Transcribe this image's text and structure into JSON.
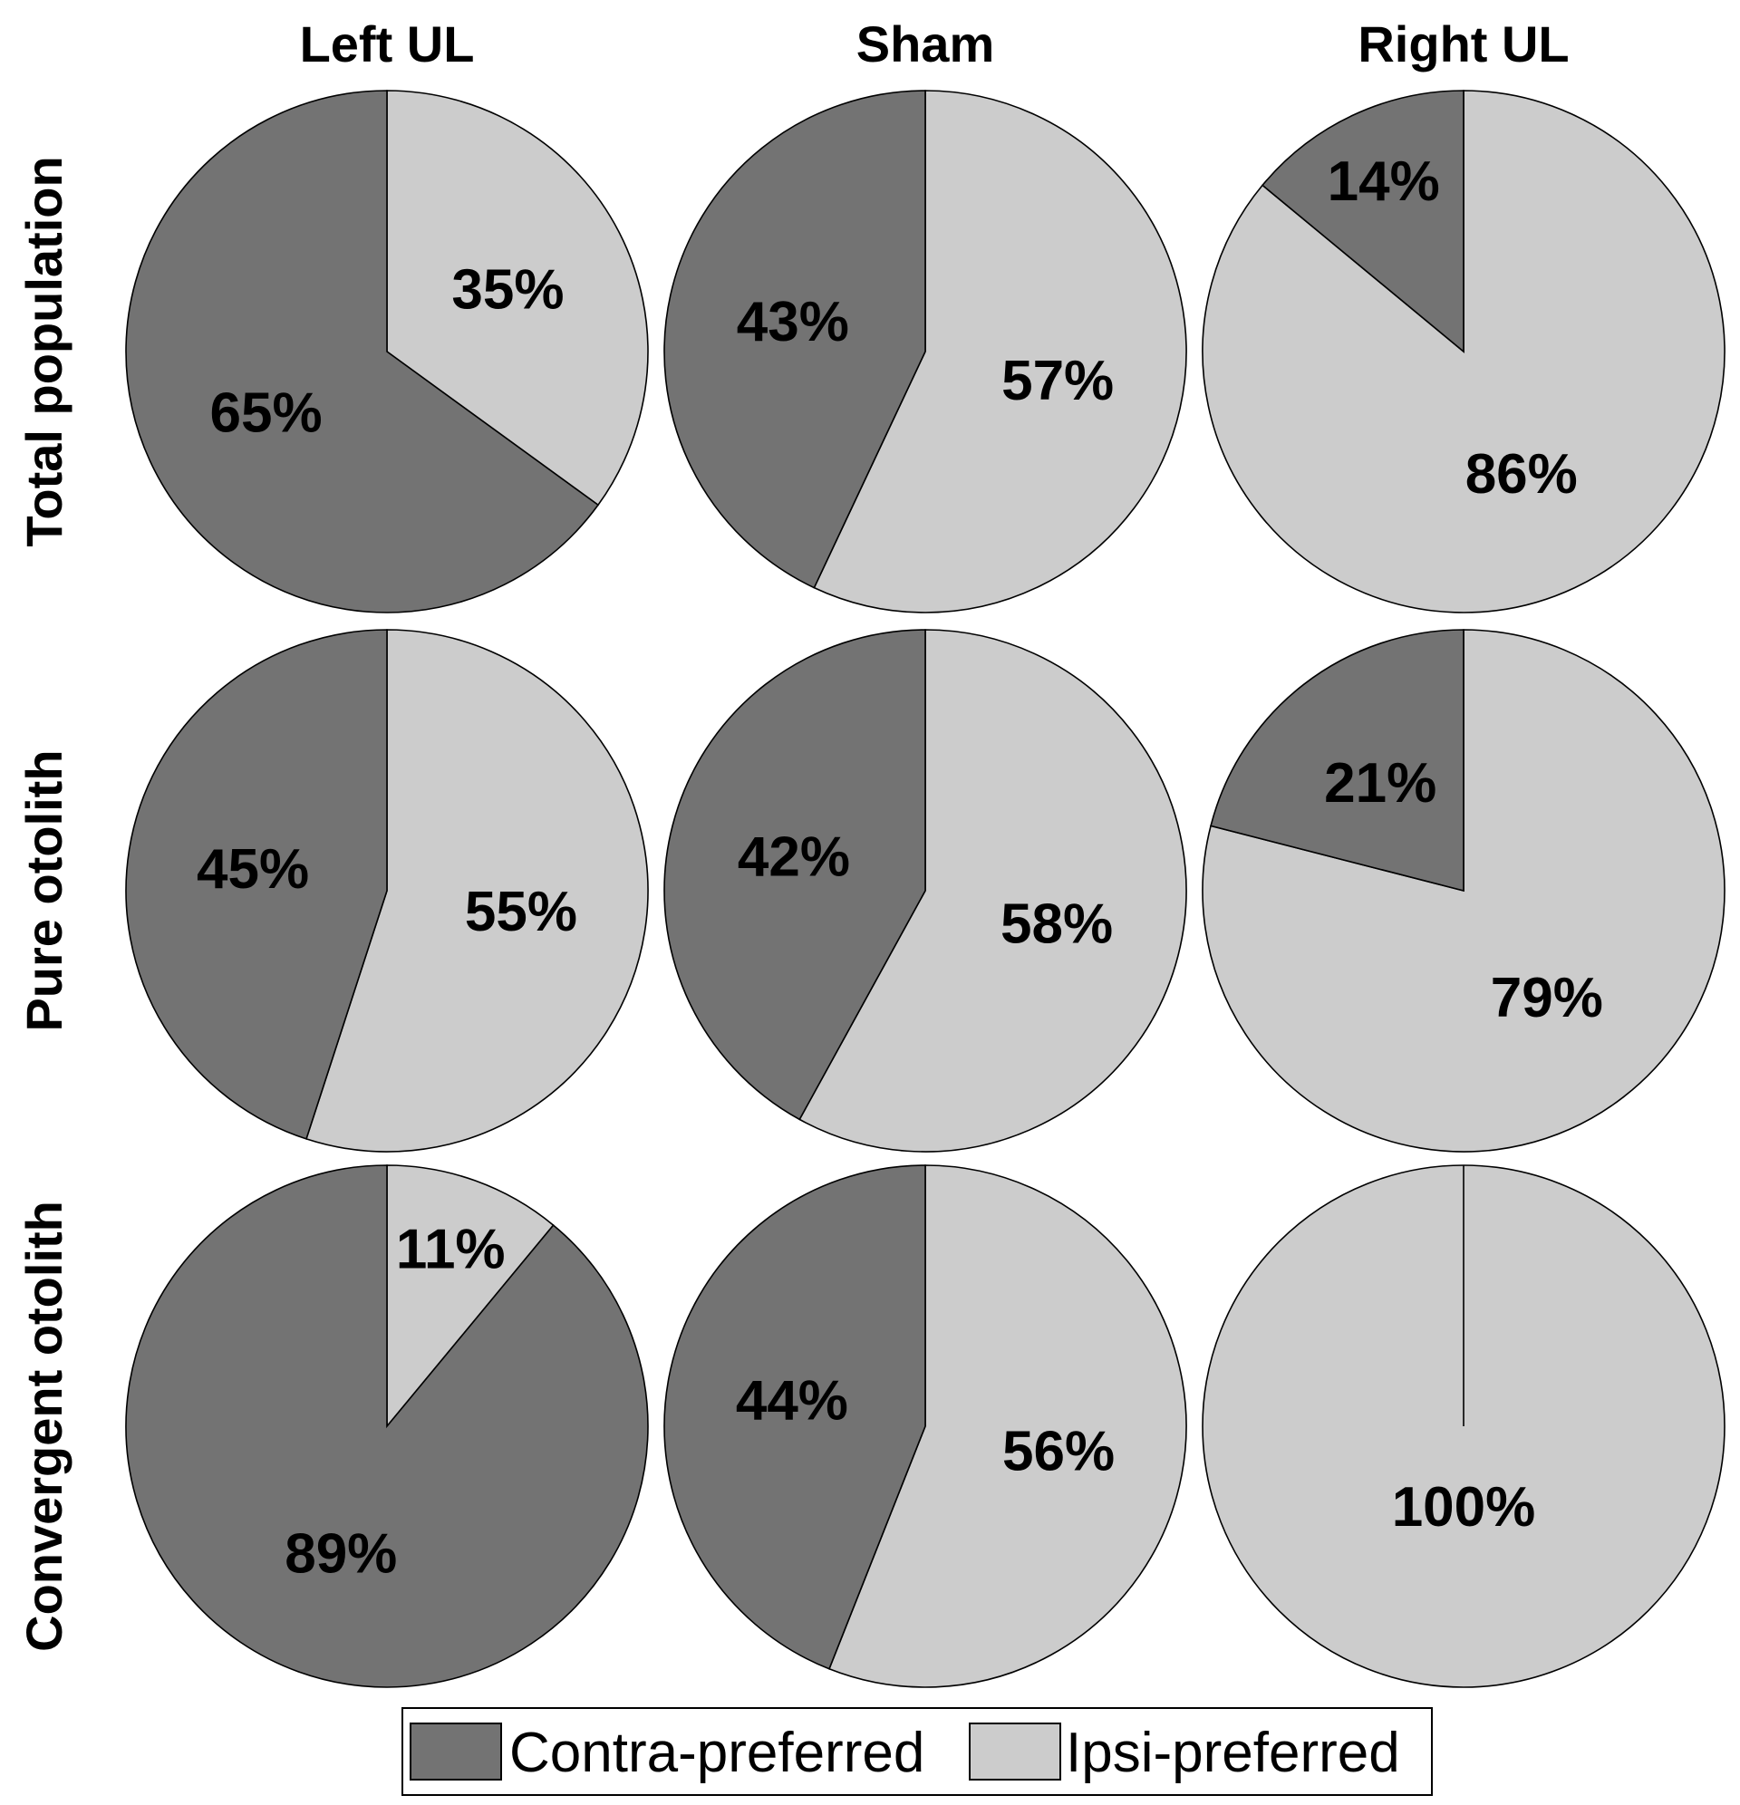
{
  "colors": {
    "contra": "#737373",
    "ipsi": "#cccccc",
    "stroke": "#000000"
  },
  "legend": {
    "contra_label": "Contra-preferred",
    "ipsi_label": "Ipsi-preferred"
  },
  "chart_data": [
    {
      "type": "pie",
      "title": "Left UL",
      "group": "Total population",
      "labels": [
        "Contra-preferred",
        "Ipsi-preferred"
      ],
      "values": [
        65,
        35
      ],
      "data_labels": [
        "65%",
        "35%"
      ]
    },
    {
      "type": "pie",
      "title": "Sham",
      "group": "Total population",
      "labels": [
        "Contra-preferred",
        "Ipsi-preferred"
      ],
      "values": [
        43,
        57
      ],
      "data_labels": [
        "43%",
        "57%"
      ]
    },
    {
      "type": "pie",
      "title": "Right UL",
      "group": "Total population",
      "labels": [
        "Contra-preferred",
        "Ipsi-preferred"
      ],
      "values": [
        14,
        86
      ],
      "data_labels": [
        "14%",
        "86%"
      ]
    },
    {
      "type": "pie",
      "title": "Left UL",
      "group": "Pure otolith",
      "labels": [
        "Contra-preferred",
        "Ipsi-preferred"
      ],
      "values": [
        45,
        55
      ],
      "data_labels": [
        "45%",
        "55%"
      ]
    },
    {
      "type": "pie",
      "title": "Sham",
      "group": "Pure otolith",
      "labels": [
        "Contra-preferred",
        "Ipsi-preferred"
      ],
      "values": [
        42,
        58
      ],
      "data_labels": [
        "42%",
        "58%"
      ]
    },
    {
      "type": "pie",
      "title": "Right UL",
      "group": "Pure otolith",
      "labels": [
        "Contra-preferred",
        "Ipsi-preferred"
      ],
      "values": [
        21,
        79
      ],
      "data_labels": [
        "21%",
        "79%"
      ]
    },
    {
      "type": "pie",
      "title": "Left UL",
      "group": "Convergent otolith",
      "labels": [
        "Contra-preferred",
        "Ipsi-preferred"
      ],
      "values": [
        89,
        11
      ],
      "data_labels": [
        "89%",
        "11%"
      ]
    },
    {
      "type": "pie",
      "title": "Sham",
      "group": "Convergent otolith",
      "labels": [
        "Contra-preferred",
        "Ipsi-preferred"
      ],
      "values": [
        44,
        56
      ],
      "data_labels": [
        "44%",
        "56%"
      ]
    },
    {
      "type": "pie",
      "title": "Right UL",
      "group": "Convergent otolith",
      "labels": [
        "Contra-preferred",
        "Ipsi-preferred"
      ],
      "values": [
        0,
        100
      ],
      "data_labels": [
        "",
        "100%"
      ]
    }
  ],
  "columns": [
    "Left UL",
    "Sham",
    "Right UL"
  ],
  "rows": [
    "Total population",
    "Pure otolith",
    "Convergent otolith"
  ]
}
